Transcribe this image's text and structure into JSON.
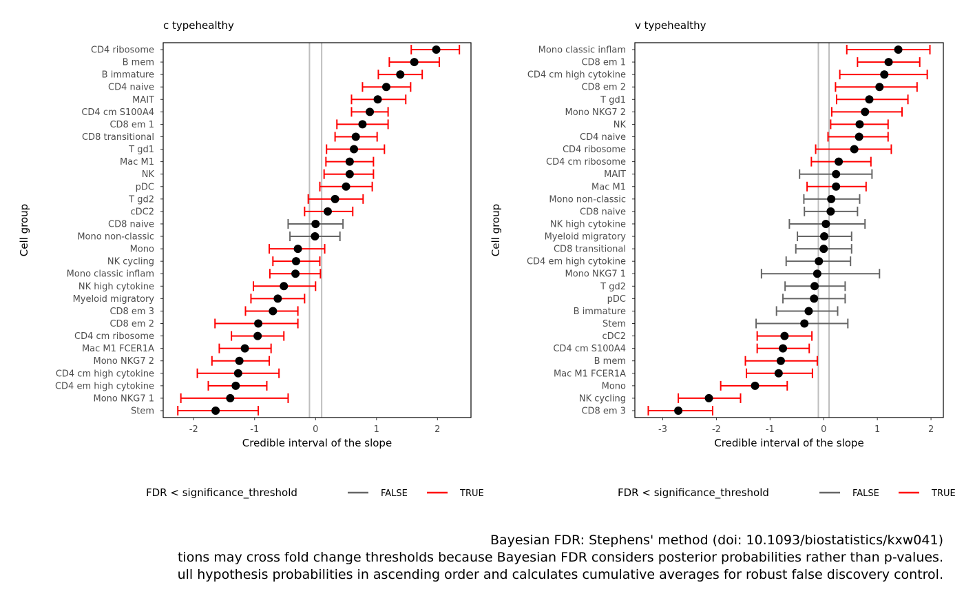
{
  "chart_data": [
    {
      "type": "forest",
      "title": "c typehealthy",
      "xlabel": "Credible interval of the slope",
      "ylabel": "Cell group",
      "xlim": [
        -2.5,
        2.55
      ],
      "xticks": [
        -2,
        -1,
        0,
        1,
        2
      ],
      "reference_lines": [
        -0.1,
        0.1
      ],
      "grid": false,
      "legend": {
        "title": "FDR < significance_threshold",
        "position": "bottom",
        "entries": [
          {
            "label": "FALSE",
            "color": "#666666"
          },
          {
            "label": "TRUE",
            "color": "#ff0000"
          }
        ]
      },
      "rows": [
        {
          "label": "CD4 ribosome",
          "estimate": 1.98,
          "lower": 1.57,
          "upper": 2.36,
          "significant": true
        },
        {
          "label": "B mem",
          "estimate": 1.62,
          "lower": 1.21,
          "upper": 2.03,
          "significant": true
        },
        {
          "label": "B immature",
          "estimate": 1.39,
          "lower": 1.03,
          "upper": 1.75,
          "significant": true
        },
        {
          "label": "CD4 naive",
          "estimate": 1.16,
          "lower": 0.77,
          "upper": 1.56,
          "significant": true
        },
        {
          "label": "MAIT",
          "estimate": 1.02,
          "lower": 0.59,
          "upper": 1.48,
          "significant": true
        },
        {
          "label": "CD4 cm S100A4",
          "estimate": 0.89,
          "lower": 0.59,
          "upper": 1.19,
          "significant": true
        },
        {
          "label": "CD8 em 1",
          "estimate": 0.77,
          "lower": 0.35,
          "upper": 1.19,
          "significant": true
        },
        {
          "label": "CD8 transitional",
          "estimate": 0.66,
          "lower": 0.32,
          "upper": 1.01,
          "significant": true
        },
        {
          "label": "T gd1",
          "estimate": 0.63,
          "lower": 0.18,
          "upper": 1.13,
          "significant": true
        },
        {
          "label": "Mac M1",
          "estimate": 0.56,
          "lower": 0.17,
          "upper": 0.95,
          "significant": true
        },
        {
          "label": "NK",
          "estimate": 0.56,
          "lower": 0.14,
          "upper": 0.95,
          "significant": true
        },
        {
          "label": "pDC",
          "estimate": 0.5,
          "lower": 0.07,
          "upper": 0.93,
          "significant": true
        },
        {
          "label": "T gd2",
          "estimate": 0.32,
          "lower": -0.12,
          "upper": 0.78,
          "significant": true
        },
        {
          "label": "cDC2",
          "estimate": 0.2,
          "lower": -0.18,
          "upper": 0.61,
          "significant": true
        },
        {
          "label": "CD8 naive",
          "estimate": 0.0,
          "lower": -0.45,
          "upper": 0.45,
          "significant": false
        },
        {
          "label": "Mono non-classic",
          "estimate": -0.01,
          "lower": -0.42,
          "upper": 0.4,
          "significant": false
        },
        {
          "label": "Mono",
          "estimate": -0.29,
          "lower": -0.76,
          "upper": 0.15,
          "significant": true
        },
        {
          "label": "NK cycling",
          "estimate": -0.32,
          "lower": -0.7,
          "upper": 0.07,
          "significant": true
        },
        {
          "label": "Mono classic inflam",
          "estimate": -0.33,
          "lower": -0.75,
          "upper": 0.08,
          "significant": true
        },
        {
          "label": "NK high cytokine",
          "estimate": -0.52,
          "lower": -1.02,
          "upper": 0.0,
          "significant": true
        },
        {
          "label": "Myeloid migratory",
          "estimate": -0.62,
          "lower": -1.06,
          "upper": -0.18,
          "significant": true
        },
        {
          "label": "CD8 em 3",
          "estimate": -0.7,
          "lower": -1.15,
          "upper": -0.29,
          "significant": true
        },
        {
          "label": "CD8 em 2",
          "estimate": -0.94,
          "lower": -1.65,
          "upper": -0.29,
          "significant": true
        },
        {
          "label": "CD4 cm ribosome",
          "estimate": -0.95,
          "lower": -1.38,
          "upper": -0.52,
          "significant": true
        },
        {
          "label": "Mac M1 FCER1A",
          "estimate": -1.16,
          "lower": -1.58,
          "upper": -0.73,
          "significant": true
        },
        {
          "label": "Mono NKG7 2",
          "estimate": -1.25,
          "lower": -1.7,
          "upper": -0.76,
          "significant": true
        },
        {
          "label": "CD4 cm high cytokine",
          "estimate": -1.27,
          "lower": -1.94,
          "upper": -0.6,
          "significant": true
        },
        {
          "label": "CD4 em high cytokine",
          "estimate": -1.31,
          "lower": -1.76,
          "upper": -0.8,
          "significant": true
        },
        {
          "label": "Mono NKG7 1",
          "estimate": -1.4,
          "lower": -2.21,
          "upper": -0.45,
          "significant": true
        },
        {
          "label": "Stem",
          "estimate": -1.64,
          "lower": -2.26,
          "upper": -0.94,
          "significant": true
        }
      ]
    },
    {
      "type": "forest",
      "title": "v typehealthy",
      "xlabel": "Credible interval of the slope",
      "ylabel": "Cell group",
      "xlim": [
        -3.52,
        2.23
      ],
      "xticks": [
        -3,
        -2,
        -1,
        0,
        1,
        2
      ],
      "reference_lines": [
        -0.1,
        0.1
      ],
      "grid": false,
      "legend": {
        "title": "FDR < significance_threshold",
        "position": "bottom",
        "entries": [
          {
            "label": "FALSE",
            "color": "#666666"
          },
          {
            "label": "TRUE",
            "color": "#ff0000"
          }
        ]
      },
      "rows": [
        {
          "label": "Mono classic inflam",
          "estimate": 1.39,
          "lower": 0.43,
          "upper": 1.98,
          "significant": true
        },
        {
          "label": "CD8 em 1",
          "estimate": 1.21,
          "lower": 0.63,
          "upper": 1.79,
          "significant": true
        },
        {
          "label": "CD4 cm high cytokine",
          "estimate": 1.13,
          "lower": 0.3,
          "upper": 1.93,
          "significant": true
        },
        {
          "label": "CD8 em 2",
          "estimate": 1.04,
          "lower": 0.22,
          "upper": 1.74,
          "significant": true
        },
        {
          "label": "T gd1",
          "estimate": 0.85,
          "lower": 0.24,
          "upper": 1.57,
          "significant": true
        },
        {
          "label": "Mono NKG7 2",
          "estimate": 0.77,
          "lower": 0.15,
          "upper": 1.46,
          "significant": true
        },
        {
          "label": "NK",
          "estimate": 0.67,
          "lower": 0.13,
          "upper": 1.2,
          "significant": true
        },
        {
          "label": "CD4 naive",
          "estimate": 0.66,
          "lower": 0.08,
          "upper": 1.2,
          "significant": true
        },
        {
          "label": "CD4 ribosome",
          "estimate": 0.57,
          "lower": -0.15,
          "upper": 1.26,
          "significant": true
        },
        {
          "label": "CD4 cm ribosome",
          "estimate": 0.28,
          "lower": -0.23,
          "upper": 0.88,
          "significant": true
        },
        {
          "label": "MAIT",
          "estimate": 0.23,
          "lower": -0.45,
          "upper": 0.9,
          "significant": false
        },
        {
          "label": "Mac M1",
          "estimate": 0.23,
          "lower": -0.31,
          "upper": 0.79,
          "significant": true
        },
        {
          "label": "Mono non-classic",
          "estimate": 0.14,
          "lower": -0.37,
          "upper": 0.67,
          "significant": false
        },
        {
          "label": "CD8 naive",
          "estimate": 0.13,
          "lower": -0.36,
          "upper": 0.63,
          "significant": false
        },
        {
          "label": "NK high cytokine",
          "estimate": 0.04,
          "lower": -0.64,
          "upper": 0.77,
          "significant": false
        },
        {
          "label": "Myeloid migratory",
          "estimate": 0.01,
          "lower": -0.49,
          "upper": 0.52,
          "significant": false
        },
        {
          "label": "CD8 transitional",
          "estimate": 0.0,
          "lower": -0.52,
          "upper": 0.52,
          "significant": false
        },
        {
          "label": "CD4 em high cytokine",
          "estimate": -0.09,
          "lower": -0.7,
          "upper": 0.5,
          "significant": false
        },
        {
          "label": "Mono NKG7 1",
          "estimate": -0.12,
          "lower": -1.16,
          "upper": 1.04,
          "significant": false
        },
        {
          "label": "T gd2",
          "estimate": -0.17,
          "lower": -0.72,
          "upper": 0.4,
          "significant": false
        },
        {
          "label": "pDC",
          "estimate": -0.18,
          "lower": -0.76,
          "upper": 0.4,
          "significant": false
        },
        {
          "label": "B immature",
          "estimate": -0.28,
          "lower": -0.88,
          "upper": 0.26,
          "significant": false
        },
        {
          "label": "Stem",
          "estimate": -0.36,
          "lower": -1.26,
          "upper": 0.45,
          "significant": false
        },
        {
          "label": "cDC2",
          "estimate": -0.73,
          "lower": -1.24,
          "upper": -0.22,
          "significant": true
        },
        {
          "label": "CD4 cm S100A4",
          "estimate": -0.76,
          "lower": -1.24,
          "upper": -0.27,
          "significant": true
        },
        {
          "label": "B mem",
          "estimate": -0.8,
          "lower": -1.46,
          "upper": -0.12,
          "significant": true
        },
        {
          "label": "Mac M1 FCER1A",
          "estimate": -0.84,
          "lower": -1.44,
          "upper": -0.21,
          "significant": true
        },
        {
          "label": "Mono",
          "estimate": -1.28,
          "lower": -1.92,
          "upper": -0.68,
          "significant": true
        },
        {
          "label": "NK cycling",
          "estimate": -2.14,
          "lower": -2.71,
          "upper": -1.55,
          "significant": true
        },
        {
          "label": "CD8 em 3",
          "estimate": -2.71,
          "lower": -3.27,
          "upper": -2.07,
          "significant": true
        }
      ]
    }
  ],
  "footer": {
    "line1": "Bayesian FDR: Stephens' method (doi: 10.1093/biostatistics/kxw041)",
    "line2": "tions may cross fold change thresholds because Bayesian FDR considers posterior probabilities rather than p-values.",
    "line3": "ull hypothesis probabilities in ascending order and calculates cumulative averages for robust false discovery control."
  },
  "colors": {
    "significant": "#ff0000",
    "not_significant": "#666666",
    "reference_line": "#bebebe",
    "point": "#000000"
  }
}
